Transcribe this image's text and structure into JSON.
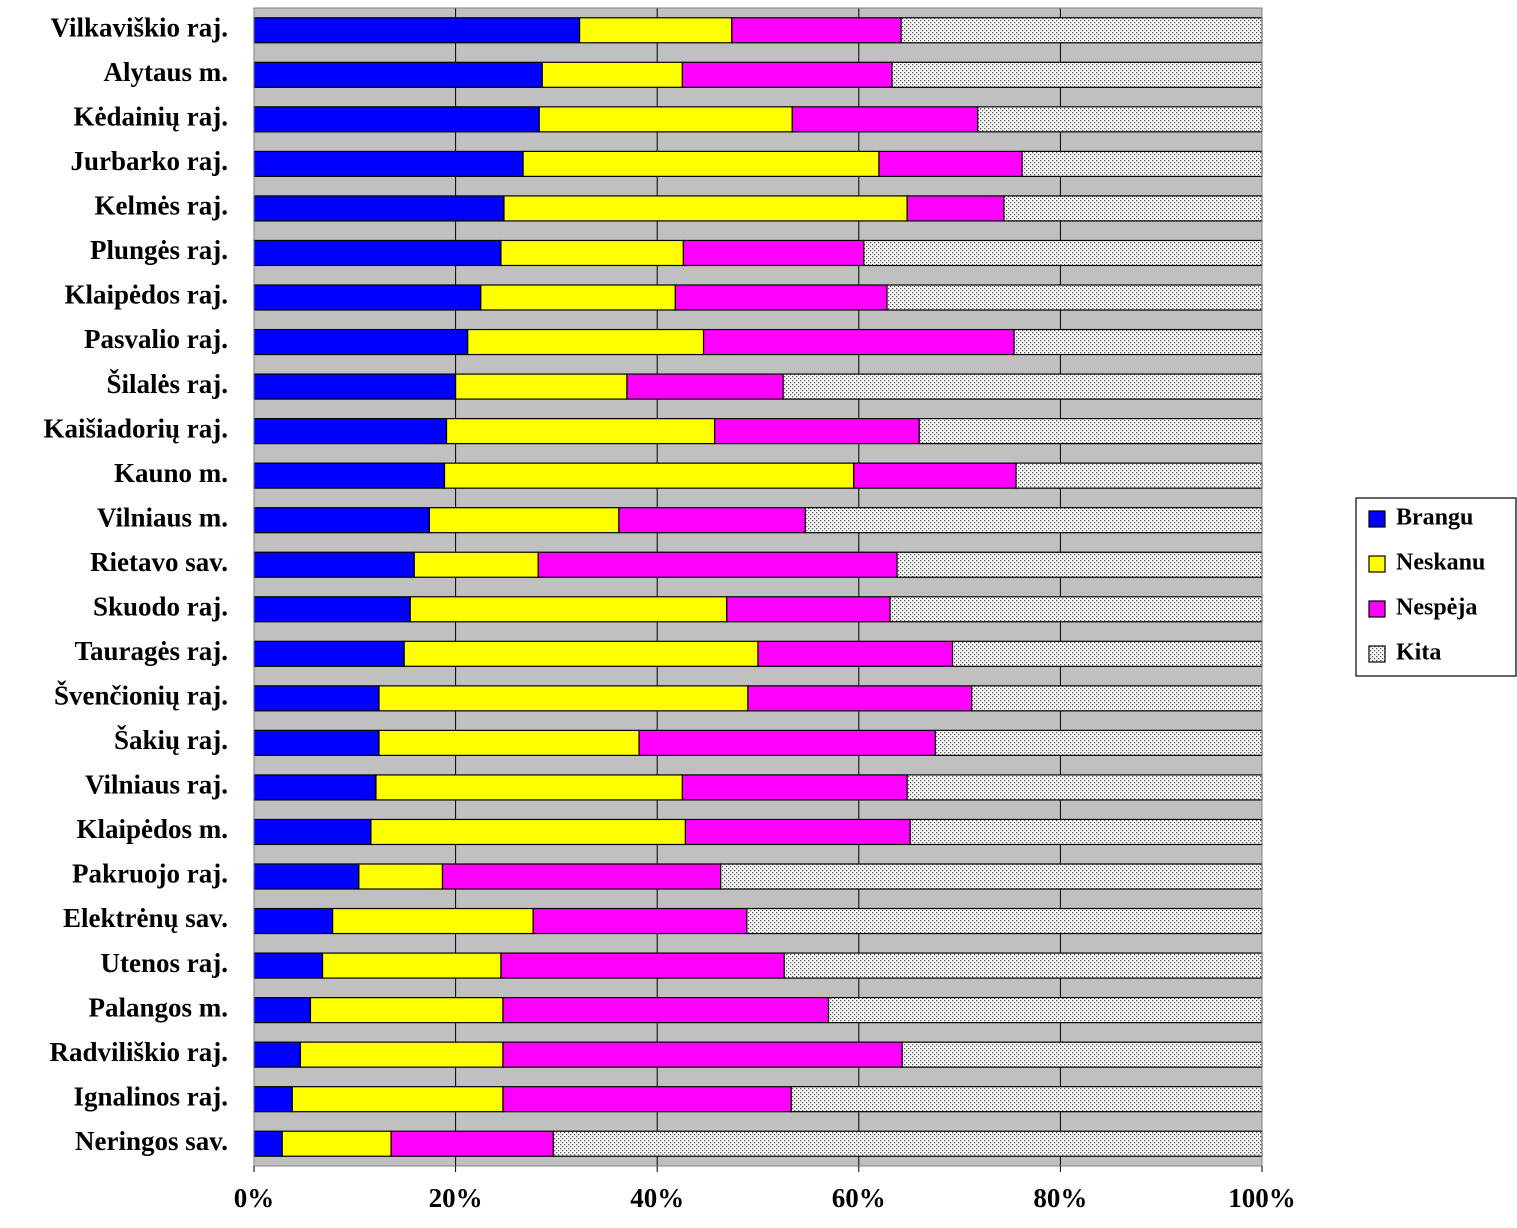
{
  "chart_data": {
    "type": "bar",
    "orientation": "horizontal",
    "stacked": "percent",
    "title": "",
    "xlabel": "",
    "ylabel": "",
    "xlim": [
      0,
      100
    ],
    "x_ticks": [
      "0%",
      "20%",
      "40%",
      "60%",
      "80%",
      "100%"
    ],
    "grid": true,
    "legend_position": "right",
    "categories": [
      "Vilkaviškio raj.",
      "Alytaus m.",
      "Kėdainių raj.",
      "Jurbarko raj.",
      "Kelmės raj.",
      "Plungės raj.",
      "Klaipėdos raj.",
      "Pasvalio raj.",
      "Šilalės raj.",
      "Kaišiadorių raj.",
      "Kauno m.",
      "Vilniaus m.",
      "Rietavo sav.",
      "Skuodo raj.",
      "Tauragės raj.",
      "Švenčionių raj.",
      "Šakių raj.",
      "Vilniaus raj.",
      "Klaipėdos m.",
      "Pakruojo raj.",
      "Elektrėnų sav.",
      "Utenos raj.",
      "Palangos m.",
      "Radviliškio raj.",
      "Ignalinos raj.",
      "Neringos sav."
    ],
    "series": [
      {
        "name": "Brangu",
        "color": "#0000FF",
        "values": [
          32.3,
          28.6,
          28.3,
          26.7,
          24.8,
          24.5,
          22.5,
          21.2,
          20.0,
          19.1,
          18.9,
          17.4,
          15.9,
          15.5,
          14.9,
          12.4,
          12.4,
          12.1,
          11.6,
          10.4,
          7.8,
          6.8,
          5.6,
          4.6,
          3.8,
          2.8
        ]
      },
      {
        "name": "Neskanu",
        "color": "#FFFF00",
        "values": [
          15.1,
          13.9,
          25.1,
          35.3,
          40.0,
          18.1,
          19.3,
          23.4,
          17.0,
          26.6,
          40.6,
          18.8,
          12.3,
          31.4,
          35.1,
          36.6,
          25.8,
          30.4,
          31.2,
          8.3,
          19.9,
          17.7,
          19.1,
          20.1,
          20.9,
          10.8
        ]
      },
      {
        "name": "Nespėja",
        "color": "#FF00FF",
        "values": [
          16.8,
          20.8,
          18.4,
          14.2,
          9.6,
          17.9,
          21.0,
          30.8,
          15.5,
          20.3,
          16.1,
          18.5,
          35.6,
          16.2,
          19.3,
          22.2,
          29.4,
          22.3,
          22.3,
          27.6,
          21.2,
          28.1,
          32.3,
          39.6,
          28.6,
          16.1
        ]
      },
      {
        "name": "Kita",
        "color": "#FFFFFF",
        "pattern": "dotted",
        "values": [
          35.8,
          36.7,
          28.2,
          23.8,
          25.6,
          39.5,
          37.2,
          24.6,
          47.5,
          34.0,
          24.4,
          45.3,
          36.2,
          36.9,
          30.7,
          28.8,
          32.4,
          35.2,
          34.9,
          53.7,
          51.1,
          47.4,
          43.0,
          35.7,
          46.7,
          70.3
        ]
      }
    ]
  }
}
